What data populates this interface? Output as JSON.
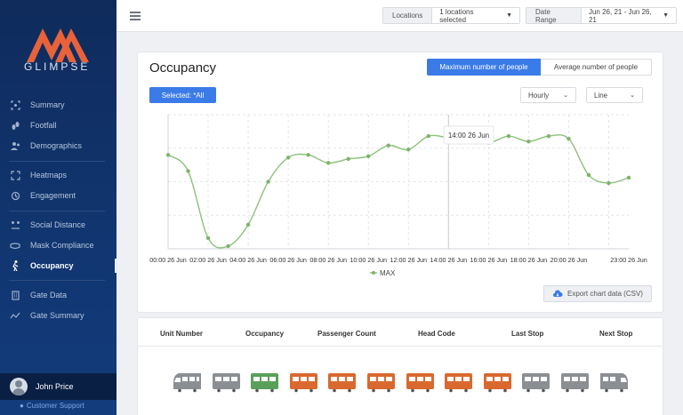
{
  "brand": {
    "name": "GLIMPSE",
    "accent": "#e8623a"
  },
  "sidebar": {
    "items": [
      {
        "label": "Summary",
        "icon": "scan-icon"
      },
      {
        "label": "Footfall",
        "icon": "footprints-icon"
      },
      {
        "label": "Demographics",
        "icon": "people-icon"
      },
      {
        "label": "Heatmaps",
        "icon": "expand-icon"
      },
      {
        "label": "Engagement",
        "icon": "history-icon"
      },
      {
        "label": "Social Distance",
        "icon": "distance-icon"
      },
      {
        "label": "Mask Compliance",
        "icon": "mask-icon"
      },
      {
        "label": "Occupancy",
        "icon": "walking-icon"
      },
      {
        "label": "Gate Data",
        "icon": "building-icon"
      },
      {
        "label": "Gate Summary",
        "icon": "trend-icon"
      }
    ],
    "active": "Occupancy",
    "user": "John Price",
    "support": "Customer Support"
  },
  "topbar": {
    "locations_label": "Locations",
    "locations_value": "1 locations selected",
    "date_label": "Date Range",
    "date_value": "Jun 26, 21 - Jun 26, 21"
  },
  "occupancy": {
    "title": "Occupancy",
    "toggle_max": "Maximum number of people",
    "toggle_avg": "Average number of people",
    "selected": "Selected: *All",
    "interval": "Hourly",
    "chart_style": "Line",
    "tooltip": "14:00 26 Jun",
    "legend": "MAX",
    "export": "Export chart data (CSV)"
  },
  "chart_data": {
    "type": "line",
    "series": [
      {
        "name": "MAX",
        "color": "#7fb36a",
        "values": [
          0.7,
          0.58,
          0.08,
          0.02,
          0.18,
          0.5,
          0.68,
          0.7,
          0.64,
          0.67,
          0.69,
          0.77,
          0.74,
          0.84,
          0.83,
          0.83,
          0.79,
          0.84,
          0.8,
          0.84,
          0.82,
          0.55,
          0.49,
          0.53
        ]
      }
    ],
    "x_ticks": [
      "00:00 26 Jun",
      "02:00 26 Jun",
      "04:00 26 Jun",
      "06:00 26 Jun",
      "08:00 26 Jun",
      "10:00 26 Jun",
      "12:00 26 Jun",
      "14:00 26 Jun",
      "16:00 26 Jun",
      "18:00 26 Jun",
      "20:00 26 Jun",
      "23:00 26 Jun"
    ],
    "grid": true
  },
  "table": {
    "headers": [
      "Unit Number",
      "Occupancy",
      "Passenger Count",
      "Head Code",
      "Last Stop",
      "Next Stop"
    ],
    "cars": [
      {
        "kind": "front",
        "color": "#8b8f94"
      },
      {
        "kind": "car",
        "color": "#8b8f94"
      },
      {
        "kind": "car",
        "color": "#5aa05a"
      },
      {
        "kind": "car",
        "color": "#d9692e"
      },
      {
        "kind": "car",
        "color": "#d9692e"
      },
      {
        "kind": "car",
        "color": "#d9692e"
      },
      {
        "kind": "car",
        "color": "#d9692e"
      },
      {
        "kind": "car",
        "color": "#d9692e"
      },
      {
        "kind": "car",
        "color": "#d9692e"
      },
      {
        "kind": "car",
        "color": "#8b8f94"
      },
      {
        "kind": "car",
        "color": "#8b8f94"
      },
      {
        "kind": "back",
        "color": "#8b8f94"
      }
    ]
  }
}
